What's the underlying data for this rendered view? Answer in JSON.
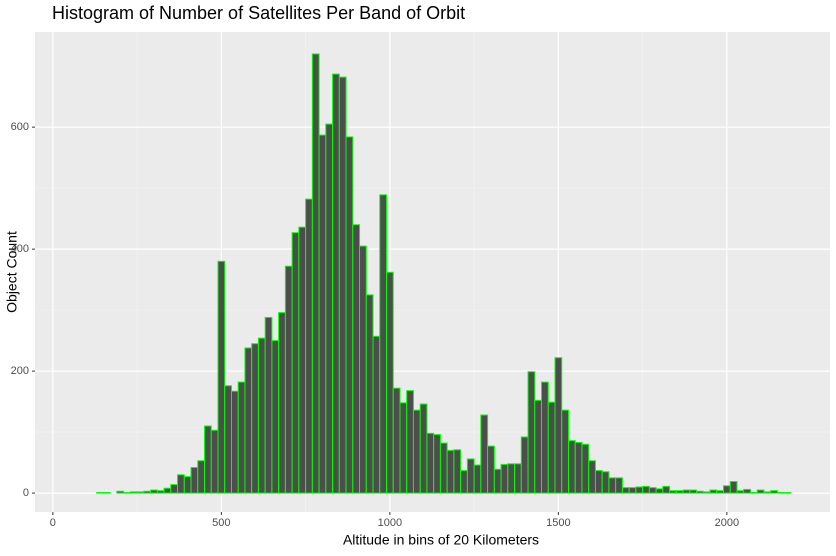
{
  "chart_data": {
    "type": "histogram",
    "title": "Histogram of Number of Satellites Per Band of Orbit",
    "x_label": "Altitude in bins of 20 Kilometers",
    "y_label": "Object Count",
    "bins": [
      110,
      130,
      150,
      170,
      190,
      210,
      230,
      250,
      270,
      290,
      310,
      330,
      350,
      370,
      390,
      410,
      430,
      450,
      470,
      490,
      510,
      530,
      550,
      570,
      590,
      610,
      630,
      650,
      670,
      690,
      710,
      730,
      750,
      770,
      790,
      810,
      830,
      850,
      870,
      890,
      910,
      930,
      950,
      970,
      990,
      1010,
      1030,
      1050,
      1070,
      1090,
      1110,
      1130,
      1150,
      1170,
      1190,
      1210,
      1230,
      1250,
      1270,
      1290,
      1310,
      1330,
      1350,
      1370,
      1390,
      1410,
      1430,
      1450,
      1470,
      1490,
      1510,
      1530,
      1550,
      1570,
      1590,
      1610,
      1630,
      1650,
      1670,
      1690,
      1710,
      1730,
      1750,
      1770,
      1790,
      1810,
      1830,
      1850,
      1870,
      1890,
      1910,
      1930,
      1950,
      1970,
      1990,
      2010,
      2030,
      2050,
      2070,
      2090,
      2110,
      2130,
      2150,
      2170,
      2190
    ],
    "values": [
      0,
      1,
      1,
      0,
      3,
      1,
      2,
      2,
      3,
      5,
      4,
      8,
      14,
      30,
      27,
      42,
      53,
      110,
      103,
      380,
      176,
      167,
      182,
      238,
      245,
      254,
      288,
      250,
      296,
      372,
      427,
      436,
      482,
      720,
      587,
      605,
      687,
      682,
      584,
      440,
      405,
      325,
      257,
      489,
      362,
      172,
      148,
      168,
      136,
      146,
      98,
      96,
      82,
      70,
      71,
      37,
      56,
      46,
      128,
      77,
      39,
      47,
      48,
      48,
      92,
      199,
      152,
      182,
      149,
      222,
      136,
      86,
      83,
      80,
      53,
      37,
      35,
      25,
      25,
      9,
      9,
      10,
      11,
      9,
      7,
      11,
      4,
      4,
      5,
      5,
      3,
      2,
      5,
      4,
      12,
      19,
      4,
      6,
      1,
      5,
      2,
      4,
      1,
      1
    ],
    "color": "#4d4d4d",
    "edge_color": "#00ff00",
    "xlim": [
      -53,
      2306
    ],
    "xticks": [
      0,
      500,
      1000,
      1500,
      2000
    ],
    "ylim": [
      -31,
      756
    ],
    "yticks": [
      0,
      200,
      400,
      600
    ],
    "grid": true
  }
}
